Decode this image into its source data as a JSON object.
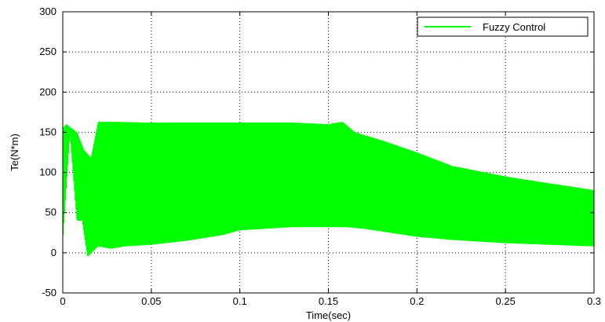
{
  "chart_data": {
    "type": "line",
    "title": "",
    "xlabel": "Time(sec)",
    "ylabel": "Te(N*m)",
    "xlim": [
      0,
      0.3
    ],
    "ylim": [
      -50,
      300
    ],
    "xticks": [
      0,
      0.05,
      0.1,
      0.15,
      0.2,
      0.25,
      0.3
    ],
    "xtick_labels": [
      "0",
      "0.05",
      "0.1",
      "0.15",
      "0.2",
      "0.25",
      "0.3"
    ],
    "yticks": [
      -50,
      0,
      50,
      100,
      150,
      200,
      250,
      300
    ],
    "ytick_labels": [
      "-50",
      "0",
      "50",
      "100",
      "150",
      "200",
      "250",
      "300"
    ],
    "grid": true,
    "legend": "top-right",
    "series": [
      {
        "name": "Fuzzy Control",
        "color": "#00ff00",
        "upper_envelope": {
          "x": [
            0,
            0.002,
            0.008,
            0.012,
            0.016,
            0.02,
            0.03,
            0.05,
            0.08,
            0.1,
            0.13,
            0.15,
            0.158,
            0.165,
            0.18,
            0.2,
            0.22,
            0.25,
            0.27,
            0.3
          ],
          "y": [
            155,
            160,
            150,
            128,
            118,
            163,
            163,
            162,
            162,
            162,
            162,
            160,
            163,
            150,
            140,
            125,
            108,
            95,
            88,
            78
          ]
        },
        "lower_envelope": {
          "x": [
            0,
            0.004,
            0.008,
            0.011,
            0.014,
            0.02,
            0.027,
            0.035,
            0.05,
            0.07,
            0.09,
            0.1,
            0.13,
            0.15,
            0.16,
            0.17,
            0.2,
            0.22,
            0.25,
            0.3
          ],
          "y": [
            15,
            150,
            40,
            40,
            -5,
            8,
            5,
            8,
            10,
            15,
            22,
            28,
            32,
            32,
            32,
            30,
            20,
            16,
            12,
            8
          ]
        }
      }
    ]
  }
}
